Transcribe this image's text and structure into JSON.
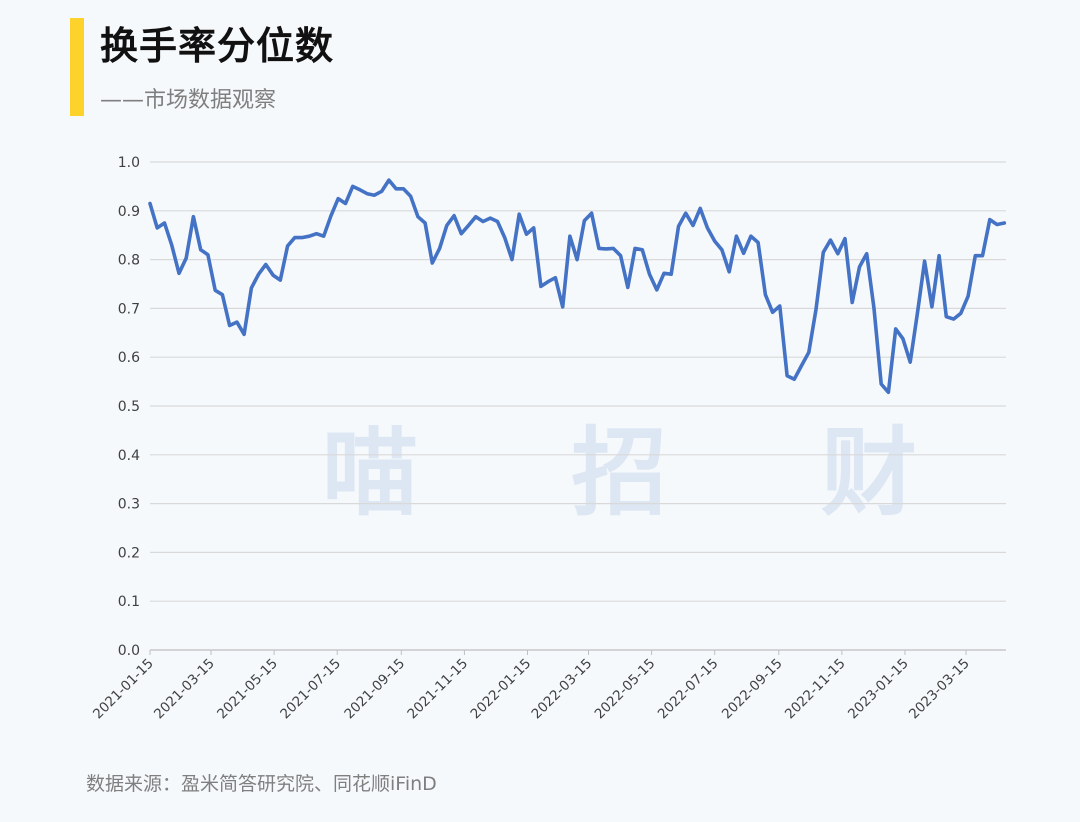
{
  "header": {
    "title": "换手率分位数",
    "subtitle": "——市场数据观察",
    "accent_color": "#fdd22a"
  },
  "watermark": "喵 招 财",
  "source": "数据来源：盈米简答研究院、同花顺iFinD",
  "chart_data": {
    "type": "line",
    "title": "",
    "xlabel": "",
    "ylabel": "",
    "ylim": [
      0,
      1.0
    ],
    "yticks": [
      "0.0",
      "0.1",
      "0.2",
      "0.3",
      "0.4",
      "0.5",
      "0.6",
      "0.7",
      "0.8",
      "0.9",
      "1.0"
    ],
    "xticks": [
      "2021-01-15",
      "2021-03-15",
      "2021-05-15",
      "2021-07-15",
      "2021-09-15",
      "2021-11-15",
      "2022-01-15",
      "2022-03-15",
      "2022-05-15",
      "2022-07-15",
      "2022-09-15",
      "2022-11-15",
      "2023-01-15",
      "2023-03-15"
    ],
    "grid": true,
    "legend": "none",
    "line_color": "#4472c4",
    "series": [
      {
        "x": [
          "2021-01-15",
          "2021-01-22",
          "2021-01-29",
          "2021-02-05",
          "2021-02-12",
          "2021-02-19",
          "2021-02-26",
          "2021-03-05",
          "2021-03-12",
          "2021-03-19",
          "2021-03-26",
          "2021-04-02",
          "2021-04-09",
          "2021-04-16",
          "2021-04-23",
          "2021-04-30",
          "2021-05-07",
          "2021-05-14",
          "2021-05-21",
          "2021-05-28",
          "2021-06-04",
          "2021-06-11",
          "2021-06-18",
          "2021-06-25",
          "2021-07-02",
          "2021-07-09",
          "2021-07-16",
          "2021-07-23",
          "2021-07-30",
          "2021-08-06",
          "2021-08-13",
          "2021-08-20",
          "2021-08-27",
          "2021-09-03",
          "2021-09-10",
          "2021-09-17",
          "2021-09-24",
          "2021-10-01",
          "2021-10-08",
          "2021-10-15",
          "2021-10-22",
          "2021-10-29",
          "2021-11-05",
          "2021-11-12",
          "2021-11-19",
          "2021-11-26",
          "2021-12-03",
          "2021-12-10",
          "2021-12-17",
          "2021-12-24",
          "2021-12-31",
          "2022-01-07",
          "2022-01-14",
          "2022-01-21",
          "2022-01-28",
          "2022-02-04",
          "2022-02-11",
          "2022-02-18",
          "2022-02-25",
          "2022-03-04",
          "2022-03-11",
          "2022-03-18",
          "2022-03-25",
          "2022-04-01",
          "2022-04-08",
          "2022-04-15",
          "2022-04-22",
          "2022-04-29",
          "2022-05-06",
          "2022-05-13",
          "2022-05-20",
          "2022-05-27",
          "2022-06-03",
          "2022-06-10",
          "2022-06-17",
          "2022-06-24",
          "2022-07-01",
          "2022-07-08",
          "2022-07-15",
          "2022-07-22",
          "2022-07-29",
          "2022-08-05",
          "2022-08-12",
          "2022-08-19",
          "2022-08-26",
          "2022-09-02",
          "2022-09-09",
          "2022-09-16",
          "2022-09-23",
          "2022-09-30",
          "2022-10-07",
          "2022-10-14",
          "2022-10-21",
          "2022-10-28",
          "2022-11-04",
          "2022-11-11",
          "2022-11-18",
          "2022-11-25",
          "2022-12-02",
          "2022-12-09",
          "2022-12-16",
          "2022-12-23",
          "2022-12-30",
          "2023-01-06",
          "2023-01-13",
          "2023-01-20",
          "2023-01-27",
          "2023-02-03",
          "2023-02-10",
          "2023-02-17",
          "2023-02-24",
          "2023-03-03",
          "2023-03-10",
          "2023-03-17",
          "2023-03-24",
          "2023-03-31",
          "2023-04-07",
          "2023-04-14",
          "2023-04-21"
        ],
        "values": [
          0.915,
          0.865,
          0.875,
          0.83,
          0.772,
          0.803,
          0.888,
          0.82,
          0.81,
          0.737,
          0.728,
          0.665,
          0.672,
          0.647,
          0.742,
          0.77,
          0.79,
          0.768,
          0.758,
          0.828,
          0.845,
          0.845,
          0.848,
          0.853,
          0.848,
          0.89,
          0.925,
          0.915,
          0.95,
          0.943,
          0.935,
          0.932,
          0.94,
          0.963,
          0.945,
          0.945,
          0.93,
          0.888,
          0.875,
          0.793,
          0.823,
          0.87,
          0.89,
          0.853,
          0.87,
          0.888,
          0.878,
          0.885,
          0.878,
          0.845,
          0.8,
          0.893,
          0.852,
          0.865,
          0.745,
          0.755,
          0.763,
          0.703,
          0.848,
          0.8,
          0.88,
          0.895,
          0.823,
          0.822,
          0.823,
          0.808,
          0.743,
          0.823,
          0.82,
          0.77,
          0.738,
          0.772,
          0.77,
          0.868,
          0.895,
          0.87,
          0.905,
          0.865,
          0.838,
          0.82,
          0.775,
          0.848,
          0.813,
          0.848,
          0.835,
          0.728,
          0.692,
          0.705,
          0.562,
          0.555,
          0.583,
          0.61,
          0.698,
          0.815,
          0.84,
          0.812,
          0.843,
          0.712,
          0.785,
          0.812,
          0.7,
          0.545,
          0.528,
          0.658,
          0.638,
          0.59,
          0.69,
          0.797,
          0.703,
          0.808,
          0.683,
          0.678,
          0.69,
          0.725,
          0.808,
          0.808,
          0.882,
          0.872,
          0.875
        ]
      }
    ]
  }
}
